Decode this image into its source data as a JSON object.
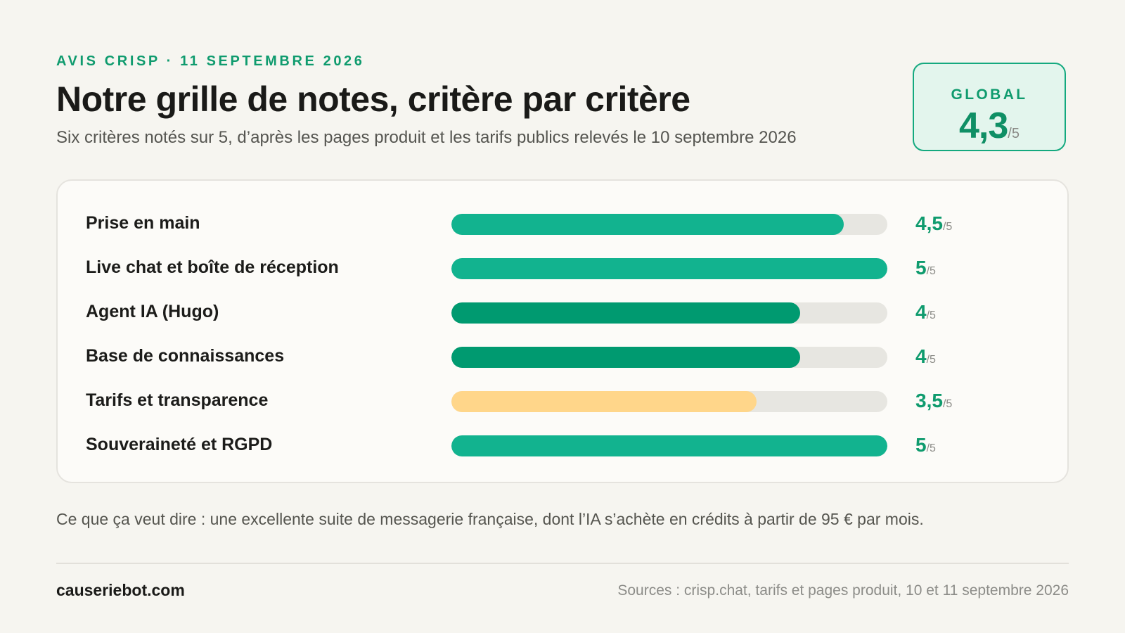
{
  "header": {
    "eyebrow": "AVIS CRISP · 11 SEPTEMBRE 2026",
    "title": "Notre grille de notes, critère par critère",
    "subtitle": "Six critères notés sur 5, d’après les pages produit et les tarifs publics relevés le 10 septembre 2026"
  },
  "global": {
    "label": "GLOBAL",
    "value": "4,3",
    "denominator": "/5"
  },
  "chart_data": {
    "type": "bar",
    "orientation": "horizontal",
    "max": 5,
    "categories": [
      "Prise en main",
      "Live chat et boîte de réception",
      "Agent IA (Hugo)",
      "Base de connaissances",
      "Tarifs et transparence",
      "Souveraineté et RGPD"
    ],
    "values": [
      4.5,
      5,
      4,
      4,
      3.5,
      5
    ],
    "value_labels": [
      "4,5",
      "5",
      "4",
      "4",
      "3,5",
      "5"
    ],
    "denominator_label": "/5",
    "bar_colors": [
      "#12b38f",
      "#12b38f",
      "#009a70",
      "#009a70",
      "#ffd68a",
      "#12b38f"
    ],
    "track_color": "#e7e6e1"
  },
  "takeaway": "Ce que ça veut dire : une excellente suite de messagerie française, dont l’IA s’achète en crédits à partir de 95 € par mois.",
  "footer": {
    "brand": "causeriebot.com",
    "sources": "Sources : crisp.chat, tarifs et pages produit, 10 et 11 septembre 2026"
  }
}
